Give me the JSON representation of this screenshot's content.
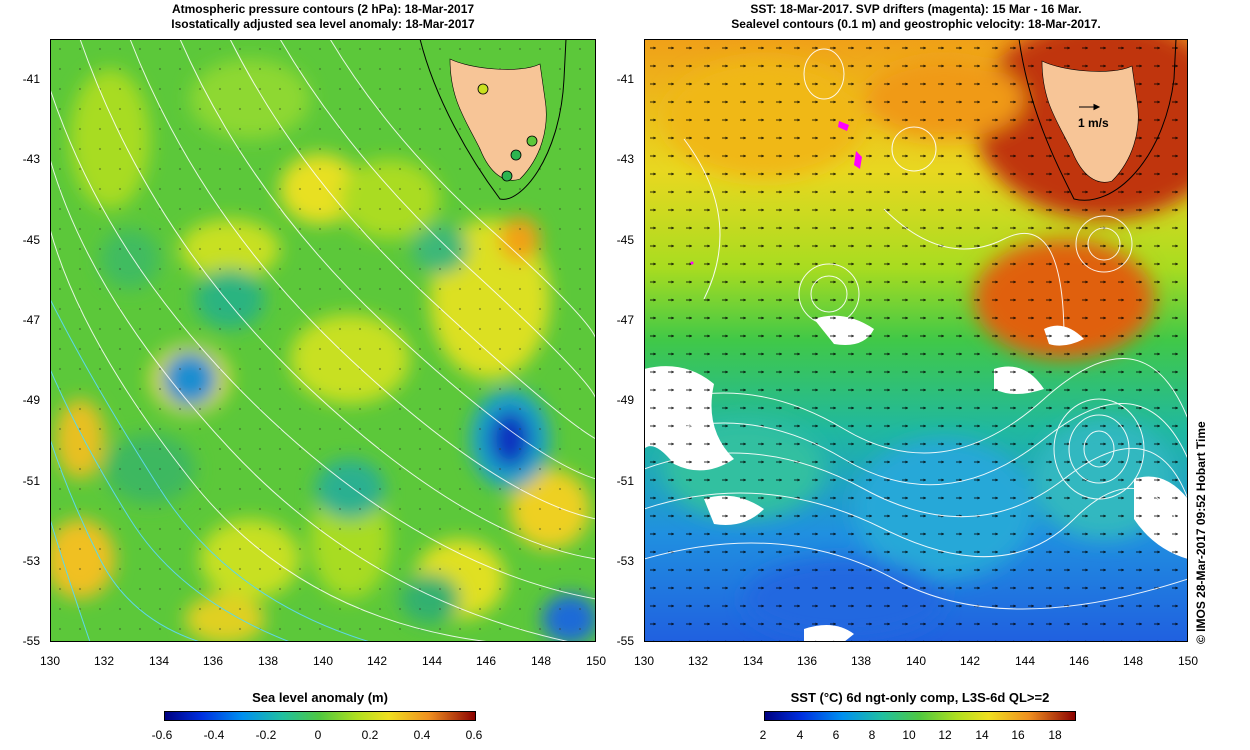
{
  "left_panel": {
    "title_line1": "Atmospheric pressure contours (2 hPa): 18-Mar-2017",
    "title_line2": "Isostatically adjusted sea level anomaly: 18-Mar-2017"
  },
  "right_panel": {
    "title_line1": "SST: 18-Mar-2017. SVP drifters (magenta): 15 Mar - 16 Mar.",
    "title_line2": "Sealevel contours (0.1 m) and geostrophic velocity: 18-Mar-2017.",
    "scale_label": "1 m/s"
  },
  "axes": {
    "lat_ticks": [
      "-41",
      "-43",
      "-45",
      "-47",
      "-49",
      "-51",
      "-53",
      "-55"
    ],
    "lon_ticks": [
      "130",
      "132",
      "134",
      "136",
      "138",
      "140",
      "142",
      "144",
      "146",
      "148",
      "150"
    ]
  },
  "colorbars": {
    "left": {
      "title": "Sea level anomaly (m)",
      "ticks": [
        "-0.6",
        "-0.4",
        "-0.2",
        "0",
        "0.2",
        "0.4",
        "0.6"
      ],
      "range": [
        -0.6,
        0.6
      ]
    },
    "right": {
      "title": "SST (°C) 6d ngt-only comp, L3S-6d QL>=2",
      "ticks": [
        "2",
        "4",
        "6",
        "8",
        "10",
        "12",
        "14",
        "16",
        "18"
      ],
      "range": [
        1,
        19
      ]
    }
  },
  "credit": "© IMOS 28-Mar-2017 09:52 Hobart Time",
  "colors": {
    "land": "#f7c597",
    "contour": "#ffffff",
    "drifter": "#ff00ff",
    "low_pressure_contour": "#5fd7e8"
  }
}
